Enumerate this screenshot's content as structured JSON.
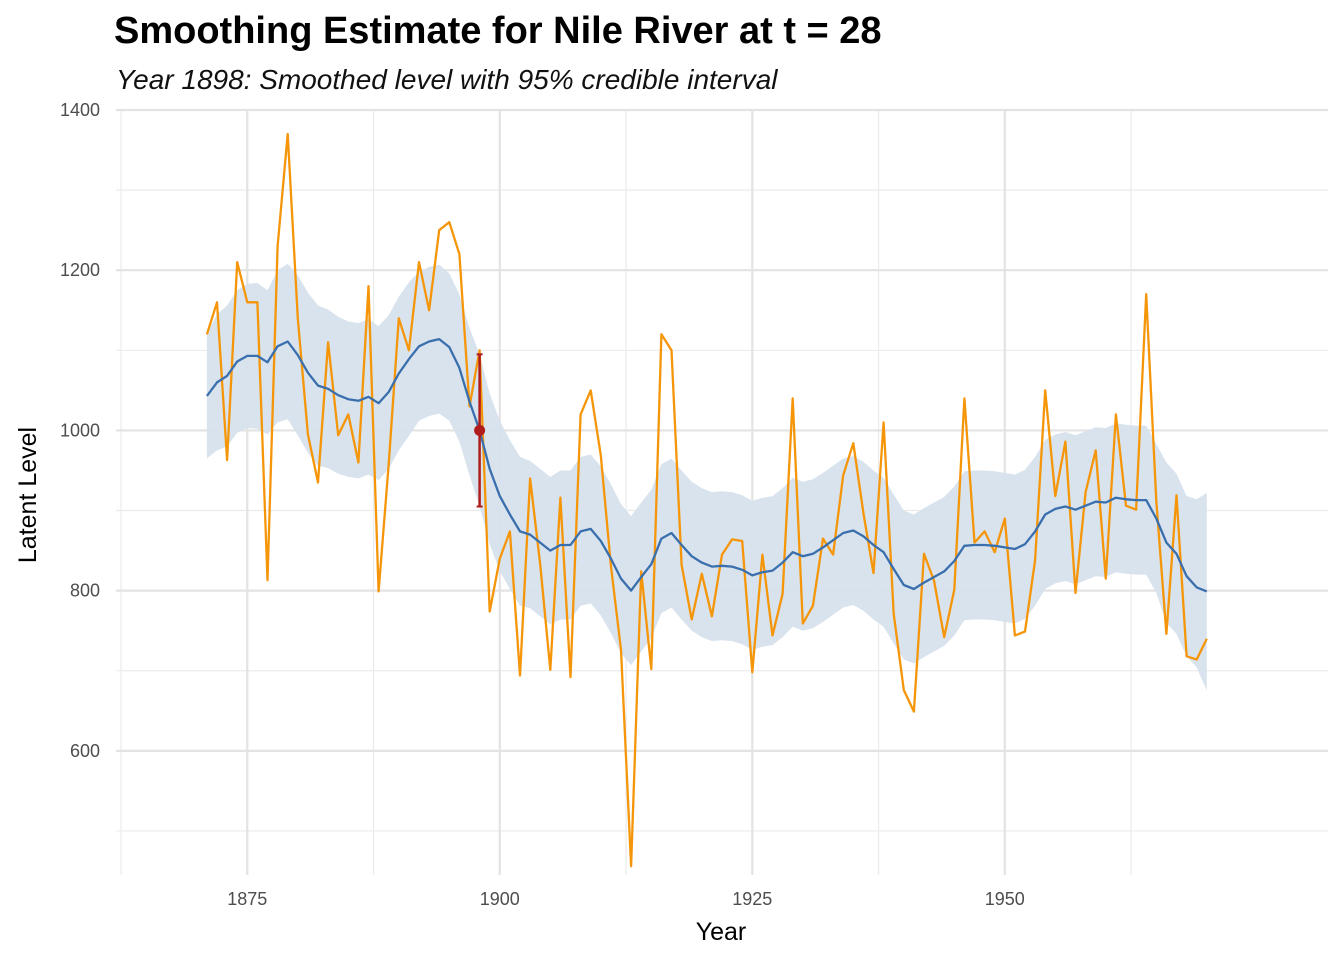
{
  "chart_data": {
    "type": "line",
    "title": "Smoothing Estimate for Nile River at t = 28",
    "subtitle": "Year 1898: Smoothed level with 95% credible interval",
    "xlabel": "Year",
    "ylabel": "Latent Level",
    "xlim": [
      1862,
      1982
    ],
    "ylim": [
      445,
      1400
    ],
    "x_ticks": [
      1875,
      1900,
      1925,
      1950
    ],
    "y_ticks": [
      600,
      800,
      1000,
      1200,
      1400
    ],
    "grid": true,
    "legend": "none",
    "colors": {
      "observed": "#f5960a",
      "smoothed": "#3a6fad",
      "band": "#d7e1ec",
      "highlight": "#b01c1c"
    },
    "x": [
      1871,
      1872,
      1873,
      1874,
      1875,
      1876,
      1877,
      1878,
      1879,
      1880,
      1881,
      1882,
      1883,
      1884,
      1885,
      1886,
      1887,
      1888,
      1889,
      1890,
      1891,
      1892,
      1893,
      1894,
      1895,
      1896,
      1897,
      1898,
      1899,
      1900,
      1901,
      1902,
      1903,
      1904,
      1905,
      1906,
      1907,
      1908,
      1909,
      1910,
      1911,
      1912,
      1913,
      1914,
      1915,
      1916,
      1917,
      1918,
      1919,
      1920,
      1921,
      1922,
      1923,
      1924,
      1925,
      1926,
      1927,
      1928,
      1929,
      1930,
      1931,
      1932,
      1933,
      1934,
      1935,
      1936,
      1937,
      1938,
      1939,
      1940,
      1941,
      1942,
      1943,
      1944,
      1945,
      1946,
      1947,
      1948,
      1949,
      1950,
      1951,
      1952,
      1953,
      1954,
      1955,
      1956,
      1957,
      1958,
      1959,
      1960,
      1961,
      1962,
      1963,
      1964,
      1965,
      1966,
      1967,
      1968,
      1969,
      1970
    ],
    "series": [
      {
        "role": "observed",
        "values": [
          1120,
          1160,
          963,
          1210,
          1160,
          1160,
          813,
          1230,
          1370,
          1140,
          995,
          935,
          1110,
          994,
          1020,
          960,
          1180,
          799,
          958,
          1140,
          1100,
          1210,
          1150,
          1250,
          1260,
          1220,
          1030,
          1100,
          774,
          840,
          874,
          694,
          940,
          833,
          701,
          916,
          692,
          1020,
          1050,
          969,
          831,
          726,
          456,
          824,
          702,
          1120,
          1100,
          832,
          764,
          821,
          768,
          845,
          864,
          862,
          698,
          845,
          744,
          796,
          1040,
          759,
          781,
          865,
          845,
          944,
          984,
          897,
          822,
          1010,
          771,
          676,
          649,
          846,
          812,
          742,
          801,
          1040,
          860,
          874,
          848,
          890,
          744,
          749,
          838,
          1050,
          918,
          986,
          797,
          923,
          975,
          815,
          1020,
          906,
          901,
          1170,
          912,
          746,
          919,
          718,
          714,
          740
        ]
      },
      {
        "role": "smoothed",
        "values": [
          1043,
          1060,
          1068,
          1086,
          1093,
          1093,
          1085,
          1105,
          1111,
          1094,
          1072,
          1056,
          1052,
          1044,
          1039,
          1037,
          1042,
          1034,
          1048,
          1071,
          1089,
          1105,
          1111,
          1114,
          1104,
          1078,
          1036,
          1000,
          952,
          918,
          895,
          874,
          870,
          860,
          850,
          857,
          857,
          874,
          877,
          862,
          840,
          815,
          800,
          817,
          833,
          865,
          872,
          857,
          843,
          835,
          830,
          831,
          830,
          826,
          819,
          823,
          825,
          835,
          848,
          843,
          846,
          854,
          863,
          872,
          875,
          868,
          857,
          848,
          827,
          807,
          802,
          810,
          817,
          824,
          837,
          856,
          857,
          857,
          856,
          854,
          852,
          858,
          874,
          895,
          902,
          905,
          901,
          906,
          911,
          910,
          916,
          914,
          913,
          913,
          890,
          860,
          846,
          818,
          804,
          799
        ]
      }
    ],
    "band": {
      "role": "95% credible interval",
      "lower": [
        965,
        975,
        980,
        997,
        1003,
        1002,
        995,
        1010,
        1014,
        994,
        972,
        956,
        953,
        946,
        942,
        940,
        945,
        938,
        952,
        975,
        993,
        1012,
        1018,
        1021,
        1012,
        986,
        944,
        905,
        858,
        824,
        802,
        781,
        778,
        768,
        758,
        764,
        764,
        781,
        784,
        769,
        747,
        722,
        707,
        724,
        741,
        772,
        779,
        764,
        750,
        742,
        737,
        738,
        737,
        733,
        726,
        730,
        732,
        742,
        755,
        750,
        753,
        761,
        770,
        779,
        782,
        775,
        764,
        755,
        734,
        714,
        709,
        717,
        724,
        731,
        744,
        763,
        764,
        764,
        763,
        761,
        759,
        765,
        781,
        802,
        809,
        812,
        808,
        813,
        818,
        817,
        823,
        821,
        820,
        820,
        797,
        760,
        746,
        718,
        704,
        675
      ],
      "upper": [
        1121,
        1145,
        1156,
        1175,
        1183,
        1184,
        1175,
        1200,
        1208,
        1194,
        1172,
        1156,
        1151,
        1142,
        1136,
        1134,
        1139,
        1130,
        1144,
        1167,
        1185,
        1198,
        1204,
        1207,
        1196,
        1170,
        1128,
        1095,
        1046,
        1012,
        988,
        967,
        962,
        952,
        942,
        950,
        950,
        967,
        970,
        955,
        933,
        908,
        893,
        910,
        926,
        958,
        965,
        950,
        936,
        928,
        923,
        924,
        923,
        919,
        912,
        916,
        918,
        928,
        941,
        936,
        939,
        947,
        956,
        965,
        968,
        961,
        950,
        941,
        920,
        900,
        895,
        903,
        910,
        917,
        930,
        949,
        950,
        950,
        949,
        947,
        945,
        951,
        967,
        988,
        995,
        998,
        994,
        999,
        1004,
        1003,
        1009,
        1007,
        1006,
        1006,
        983,
        960,
        946,
        918,
        914,
        922
      ]
    },
    "highlight": {
      "x": 1898,
      "y": 1000,
      "lower": 905,
      "upper": 1095
    }
  }
}
